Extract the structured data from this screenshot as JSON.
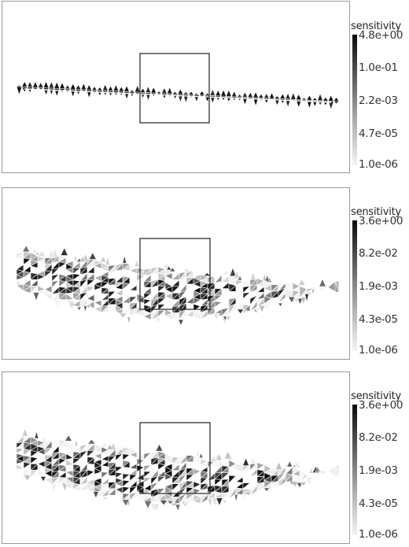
{
  "panels": [
    {
      "colorbar": {
        "title": "sensitivity",
        "ticks": [
          "4.8e+00",
          "1.0e-01",
          "2.2e-03",
          "4.7e-05",
          "1.0e-06"
        ]
      }
    },
    {
      "colorbar": {
        "title": "sensitivity",
        "ticks": [
          "3.6e+00",
          "8.2e-02",
          "1.9e-03",
          "4.3e-05",
          "1.0e-06"
        ]
      }
    },
    {
      "colorbar": {
        "title": "sensitivity",
        "ticks": [
          "3.6e+00",
          "8.2e-02",
          "1.9e-03",
          "4.3e-05",
          "1.0e-06"
        ]
      }
    }
  ],
  "colors": {
    "mesh_dark": "#111111",
    "mesh_light": "#ffffff",
    "frame": "#9a9a9a",
    "zoom_box": "#222222"
  }
}
